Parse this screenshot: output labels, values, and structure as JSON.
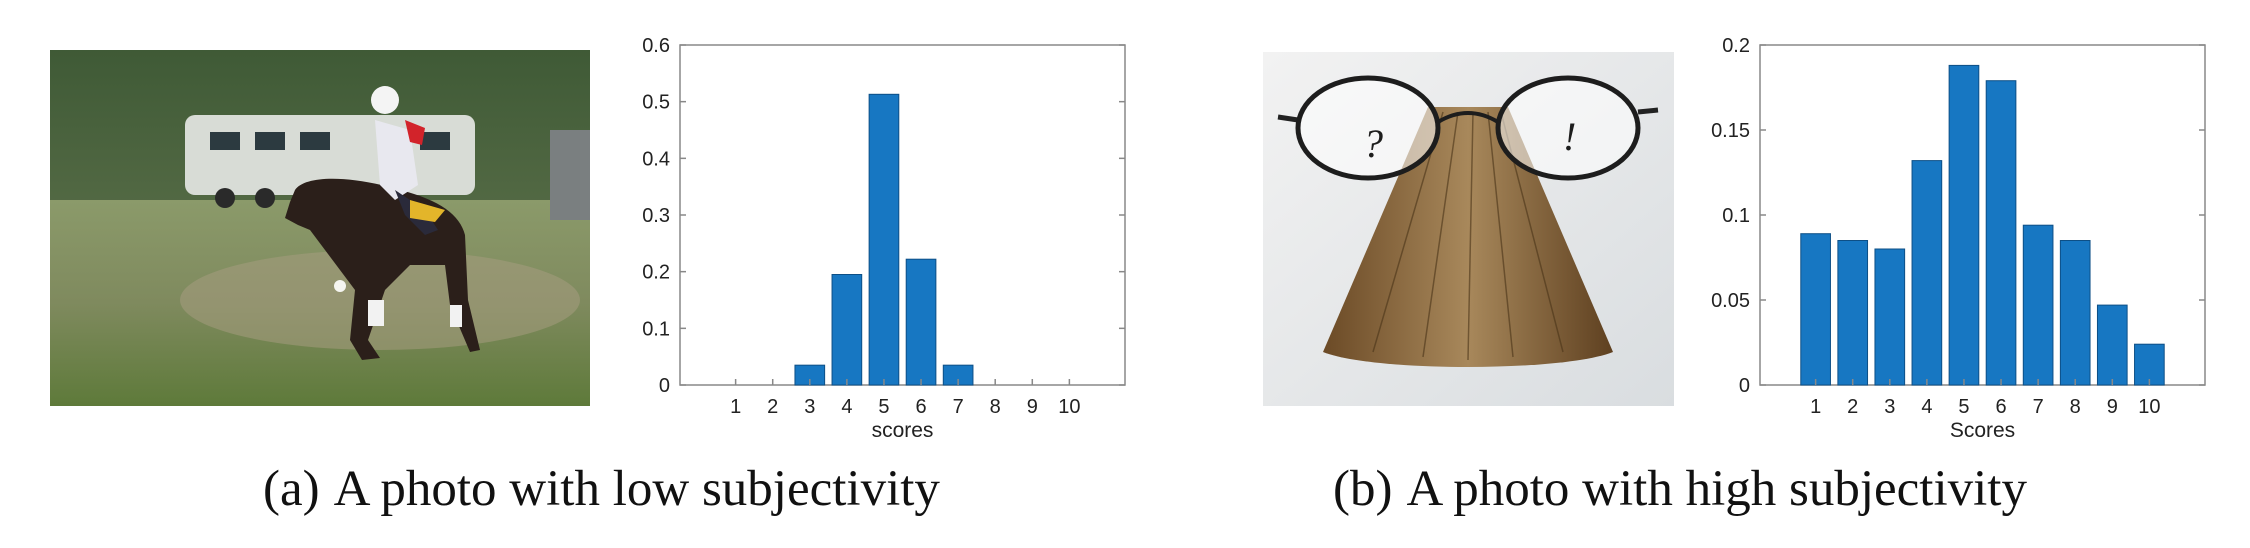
{
  "captions": {
    "a_marker": "(a)",
    "a_text": "A photo with low subjectivity",
    "b_marker": "(b)",
    "b_text": "A photo with high subjectivity"
  },
  "photos": {
    "a": "Polo player on a dark horse on a grassy field, horse trailer behind",
    "b": "Eyeglasses resting on a fanned old book, question mark and exclamation mark drawn on the lenses",
    "b_lens_marks": [
      "?",
      "!"
    ]
  },
  "colors": {
    "bar": "#1777c2",
    "axis": "#888888"
  },
  "chart_data": [
    {
      "type": "bar",
      "categories": [
        "1",
        "2",
        "3",
        "4",
        "5",
        "6",
        "7",
        "8",
        "9",
        "10"
      ],
      "values": [
        0,
        0,
        0.035,
        0.195,
        0.513,
        0.222,
        0.035,
        0,
        0,
        0
      ],
      "xlabel": "scores",
      "ylabel": "",
      "title": "",
      "ylim": [
        0,
        0.6
      ],
      "yticks": [
        "0",
        "0.1",
        "0.2",
        "0.3",
        "0.4",
        "0.5",
        "0.6"
      ],
      "grid": false
    },
    {
      "type": "bar",
      "categories": [
        "1",
        "2",
        "3",
        "4",
        "5",
        "6",
        "7",
        "8",
        "9",
        "10"
      ],
      "values": [
        0.089,
        0.085,
        0.08,
        0.132,
        0.188,
        0.179,
        0.094,
        0.085,
        0.047,
        0.024
      ],
      "xlabel": "Scores",
      "ylabel": "",
      "title": "",
      "ylim": [
        0,
        0.2
      ],
      "yticks": [
        "0",
        "0.05",
        "0.1",
        "0.15",
        "0.2"
      ],
      "grid": false
    }
  ]
}
